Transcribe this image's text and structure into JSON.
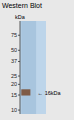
{
  "chart_data": {
    "type": "band",
    "title": "Western Blot",
    "y_label": "kDa",
    "log": "y",
    "ylim": [
      9,
      110
    ],
    "yticks": [
      75,
      50,
      37,
      25,
      20,
      15,
      10
    ],
    "band": {
      "low": 14.8,
      "high": 17.5,
      "color": "#7a4f35"
    },
    "annotation": {
      "text": "← 16kDa",
      "y": 16
    }
  }
}
